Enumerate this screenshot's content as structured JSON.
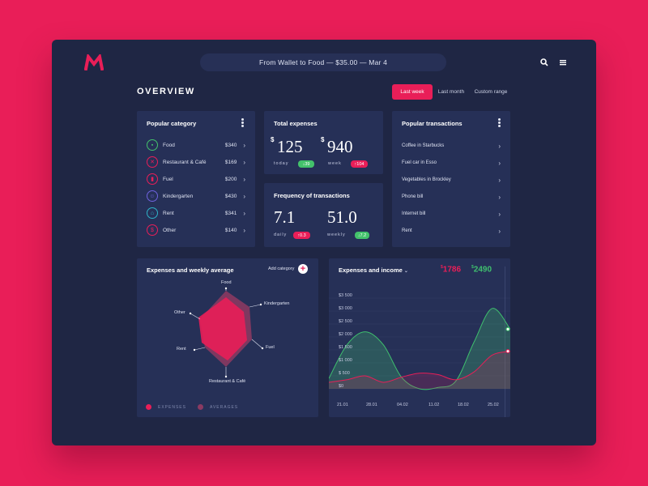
{
  "header": {
    "search_text": "From Wallet to Food — $35.00 — Mar 4",
    "overview_title": "OVERVIEW",
    "ranges": [
      "Last week",
      "Last month",
      "Custom range"
    ],
    "active_range": "Last week"
  },
  "popular_category": {
    "title": "Popular category",
    "items": [
      {
        "name": "Food",
        "amount": "$340",
        "icon": "cart-icon",
        "color": "#43c26b"
      },
      {
        "name": "Restaurant & Café",
        "amount": "$169",
        "icon": "cutlery-icon",
        "color": "#e91e58"
      },
      {
        "name": "Fuel",
        "amount": "$200",
        "icon": "fuel-icon",
        "color": "#e91e58"
      },
      {
        "name": "Kindergarten",
        "amount": "$430",
        "icon": "child-icon",
        "color": "#6f63e0"
      },
      {
        "name": "Rent",
        "amount": "$341",
        "icon": "house-icon",
        "color": "#2fb3c8"
      },
      {
        "name": "Other",
        "amount": "$140",
        "icon": "dollar-icon",
        "color": "#e91e58"
      }
    ]
  },
  "total_expenses": {
    "title": "Total expenses",
    "today": {
      "currency": "$",
      "value": "125",
      "label": "today",
      "badge": "↓39"
    },
    "week": {
      "currency": "$",
      "value": "940",
      "label": "week",
      "badge": "↑104"
    }
  },
  "frequency": {
    "title": "Frequency of transactions",
    "daily": {
      "value": "7.1",
      "label": "daily",
      "badge": "↑0.3"
    },
    "weekly": {
      "value": "51.0",
      "label": "weekly",
      "badge": "↓7.2"
    }
  },
  "popular_transactions": {
    "title": "Popular transactions",
    "items": [
      "Coffee in Starbucks",
      "Fuel car in Esso",
      "Vegetables in Brockley",
      "Phone bill",
      "Internet bill",
      "Rent"
    ]
  },
  "radar": {
    "title": "Expenses and weekly average",
    "add_label": "Add category",
    "labels": {
      "food": "Food",
      "kindergarten": "Kindergarten",
      "fuel": "Fuel",
      "restaurant": "Restaurant & Café",
      "rent": "Rent",
      "other": "Other"
    },
    "legend": [
      "EXPENSES",
      "AVERAGES"
    ],
    "colors": {
      "expenses": "#e91e58",
      "averages": "#8a3a62"
    }
  },
  "chart_data": {
    "type": "area",
    "title": "Expenses and income",
    "totals": {
      "expenses": "1786",
      "income": "2490",
      "currency": "$"
    },
    "y_ticks": [
      "$3 500",
      "$3 000",
      "$2 500",
      "$2 000",
      "$1 500",
      "$1 000",
      "$ 500",
      "$0"
    ],
    "x_ticks": [
      "21.01",
      "28.01",
      "04.02",
      "11.02",
      "18.02",
      "25.02"
    ],
    "ylim": [
      0,
      3500
    ],
    "x": [
      0,
      3.5,
      7,
      10.5,
      14,
      17.5,
      21,
      24.5,
      28,
      31.5,
      35
    ],
    "series": [
      {
        "name": "income",
        "color": "#3fbf6e",
        "values": [
          400,
          1700,
          2200,
          1700,
          450,
          0,
          50,
          300,
          1800,
          3100,
          2300
        ]
      },
      {
        "name": "expenses",
        "color": "#e91e58",
        "values": [
          250,
          350,
          500,
          250,
          450,
          600,
          550,
          350,
          650,
          1300,
          1450
        ]
      }
    ]
  }
}
